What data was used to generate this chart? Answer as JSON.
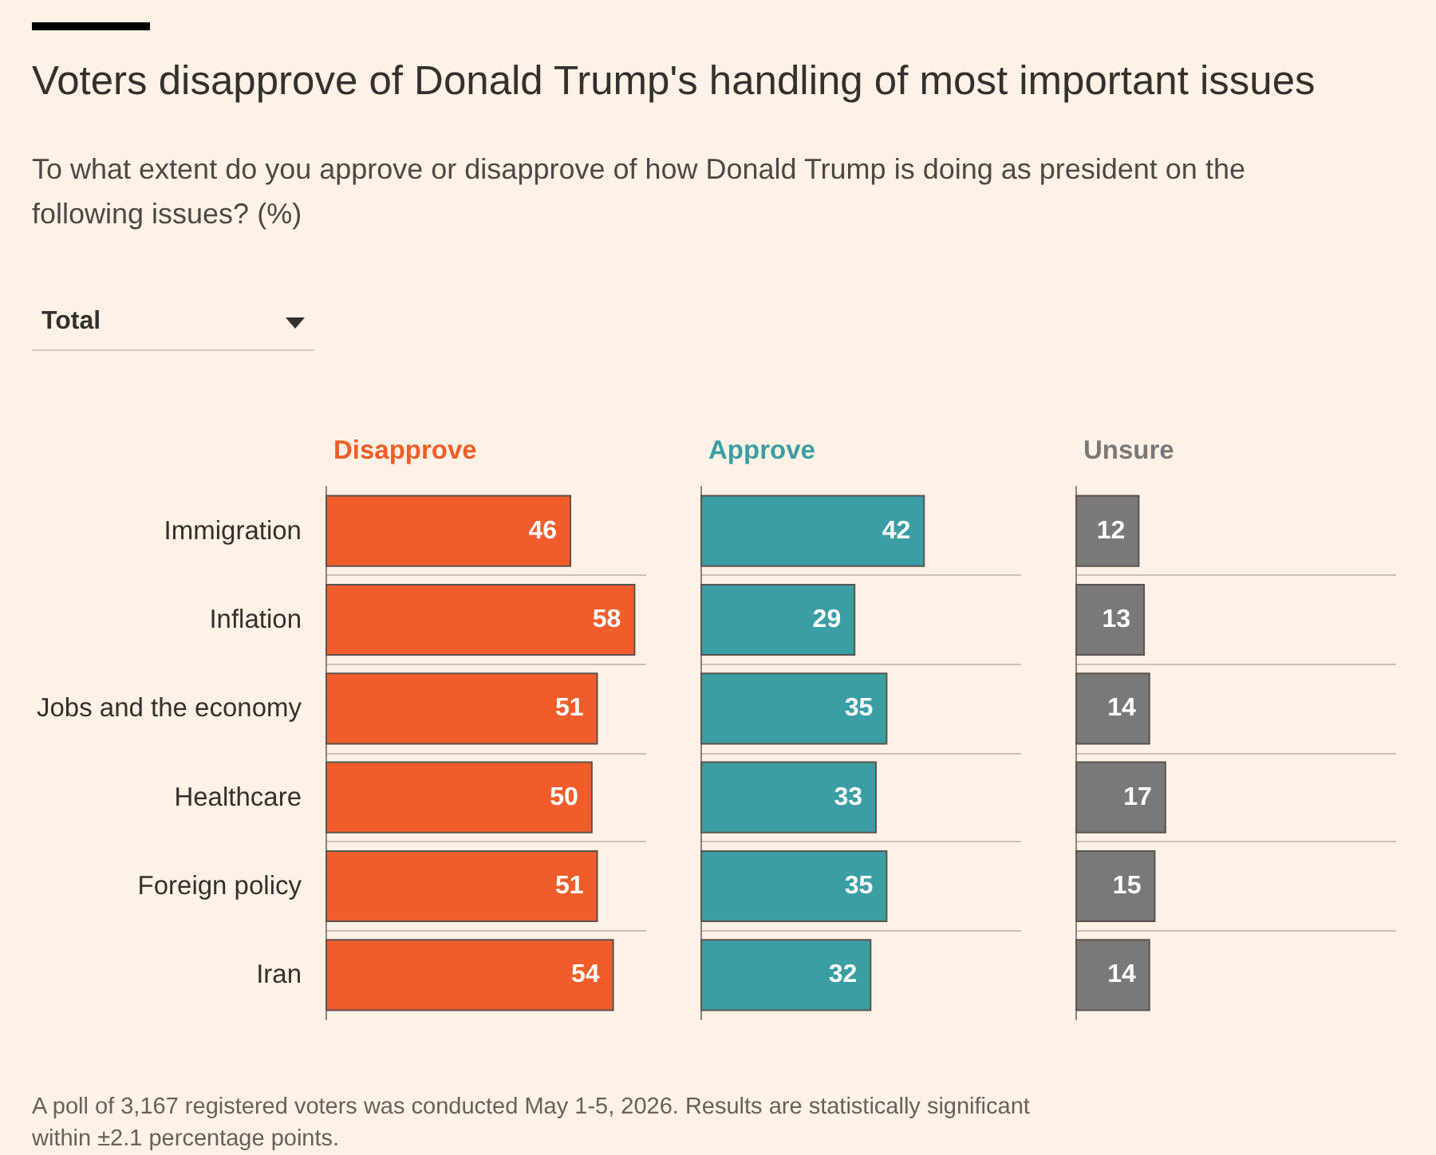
{
  "chart_data": [
    {
      "type": "bar",
      "title": "Voters disapprove of Donald Trump's handling of most important issues",
      "subtitle": "To what extent do you approve or disapprove of how Donald Trump is doing as president on the following issues? (%)",
      "annotations": [
        "Total",
        "A poll of 3,167 registered voters was conducted May 1-5, 2026. Results are statistically significant within ±2.1 percentage points."
      ],
      "orientation": "horizontal",
      "categories": [
        "Immigration",
        "Inflation",
        "Jobs and the economy",
        "Healthcare",
        "Foreign policy",
        "Iran"
      ],
      "series": [
        {
          "name": "Disapprove",
          "color": "#f05d2b",
          "values": [
            46,
            58,
            51,
            50,
            51,
            54
          ]
        }
      ],
      "data_labels": true,
      "grid": "y",
      "tick_labels": "y"
    },
    {
      "type": "bar",
      "orientation": "horizontal",
      "categories": [
        null,
        null,
        null,
        null,
        null,
        null
      ],
      "series": [
        {
          "name": "Approve",
          "color": "#3a9ea4",
          "values": [
            42,
            29,
            35,
            33,
            35,
            32
          ]
        }
      ],
      "data_labels": true,
      "grid": "y",
      "tick_labels": false
    },
    {
      "type": "bar",
      "orientation": "horizontal",
      "categories": [
        null,
        null,
        null,
        null,
        null,
        null
      ],
      "series": [
        {
          "name": "Unsure",
          "color": "#7a7878",
          "values": [
            12,
            13,
            14,
            17,
            15,
            14
          ]
        }
      ],
      "data_labels": true,
      "grid": "y",
      "tick_labels": false
    }
  ]
}
